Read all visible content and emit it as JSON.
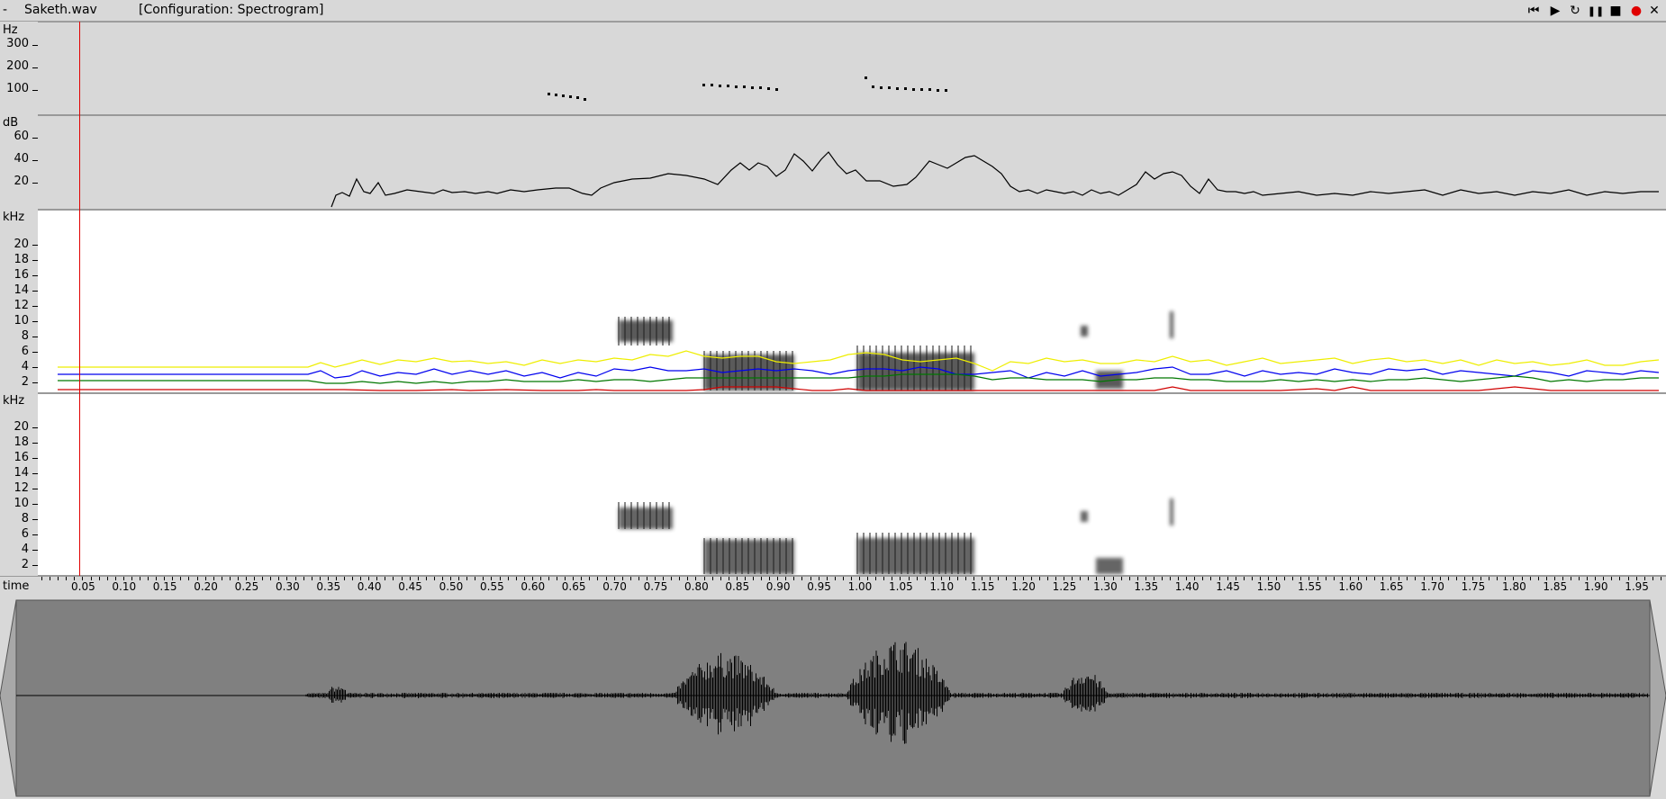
{
  "window": {
    "dash": "-",
    "filename": "Saketh.wav",
    "configuration": "[Configuration: Spectrogram]",
    "controls": [
      {
        "name": "skip-to-start-icon",
        "glyph": "⏮"
      },
      {
        "name": "play-icon",
        "glyph": "▶"
      },
      {
        "name": "loop-play-icon",
        "glyph": "↻"
      },
      {
        "name": "pause-icon",
        "glyph": "❚❚"
      },
      {
        "name": "stop-icon",
        "glyph": "■"
      },
      {
        "name": "record-icon",
        "glyph": "●"
      },
      {
        "name": "close-icon",
        "glyph": "✕"
      }
    ]
  },
  "pitch": {
    "unit": "Hz",
    "ticks": [
      "300",
      "200",
      "100"
    ]
  },
  "intensity": {
    "unit": "dB",
    "ticks": [
      "60",
      "40",
      "20"
    ]
  },
  "formants": {
    "unit": "kHz",
    "ticks": [
      "20",
      "18",
      "16",
      "14",
      "12",
      "10",
      "8",
      "6",
      "4",
      "2"
    ]
  },
  "spectrogram": {
    "unit": "kHz",
    "ticks": [
      "20",
      "18",
      "16",
      "14",
      "12",
      "10",
      "8",
      "6",
      "4",
      "2"
    ]
  },
  "timeaxis": {
    "label": "time",
    "ticks": [
      "0.05",
      "0.10",
      "0.15",
      "0.20",
      "0.25",
      "0.30",
      "0.35",
      "0.40",
      "0.45",
      "0.50",
      "0.55",
      "0.60",
      "0.65",
      "0.70",
      "0.75",
      "0.80",
      "0.85",
      "0.90",
      "0.95",
      "1.00",
      "1.05",
      "1.10",
      "1.15",
      "1.20",
      "1.25",
      "1.30",
      "1.35",
      "1.40",
      "1.45",
      "1.50",
      "1.55",
      "1.60",
      "1.65",
      "1.70",
      "1.75",
      "1.80",
      "1.85",
      "1.90",
      "1.95"
    ]
  },
  "cursor": {
    "time": 0.05
  },
  "colors": {
    "background": "#d8d8d8",
    "cursor": "#e00000",
    "waveform_bg": "#808080",
    "f1": "#d00000",
    "f2": "#007700",
    "f3": "#0000ee",
    "f4": "#eeee00"
  }
}
